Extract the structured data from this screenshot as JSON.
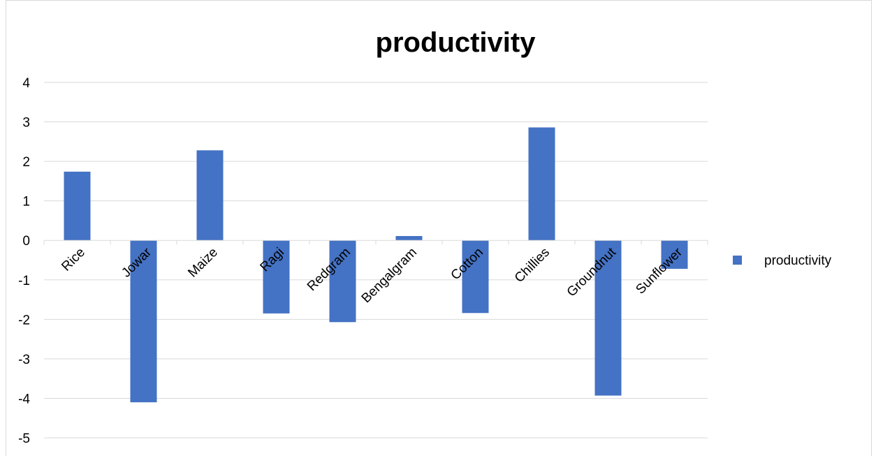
{
  "chart_data": {
    "type": "bar",
    "title": "productivity",
    "xlabel": "",
    "ylabel": "",
    "categories": [
      "Rice",
      "Jowar",
      "Maize",
      "Ragi",
      "Redgram",
      "Bengalgram",
      "Cotton",
      "Chillies",
      "Groundnut",
      "Sunflower"
    ],
    "series": [
      {
        "name": "productivity",
        "color": "#4472C4",
        "values": [
          1.74,
          -4.1,
          2.28,
          -1.85,
          -2.07,
          0.11,
          -1.84,
          2.86,
          -3.93,
          -0.72
        ]
      }
    ],
    "ylim": [
      -5,
      4
    ],
    "yticks": [
      "4",
      "3",
      "2",
      "1",
      "0",
      "-1",
      "-2",
      "-3",
      "-4",
      "-5"
    ],
    "grid": true,
    "legend_position": "right"
  }
}
